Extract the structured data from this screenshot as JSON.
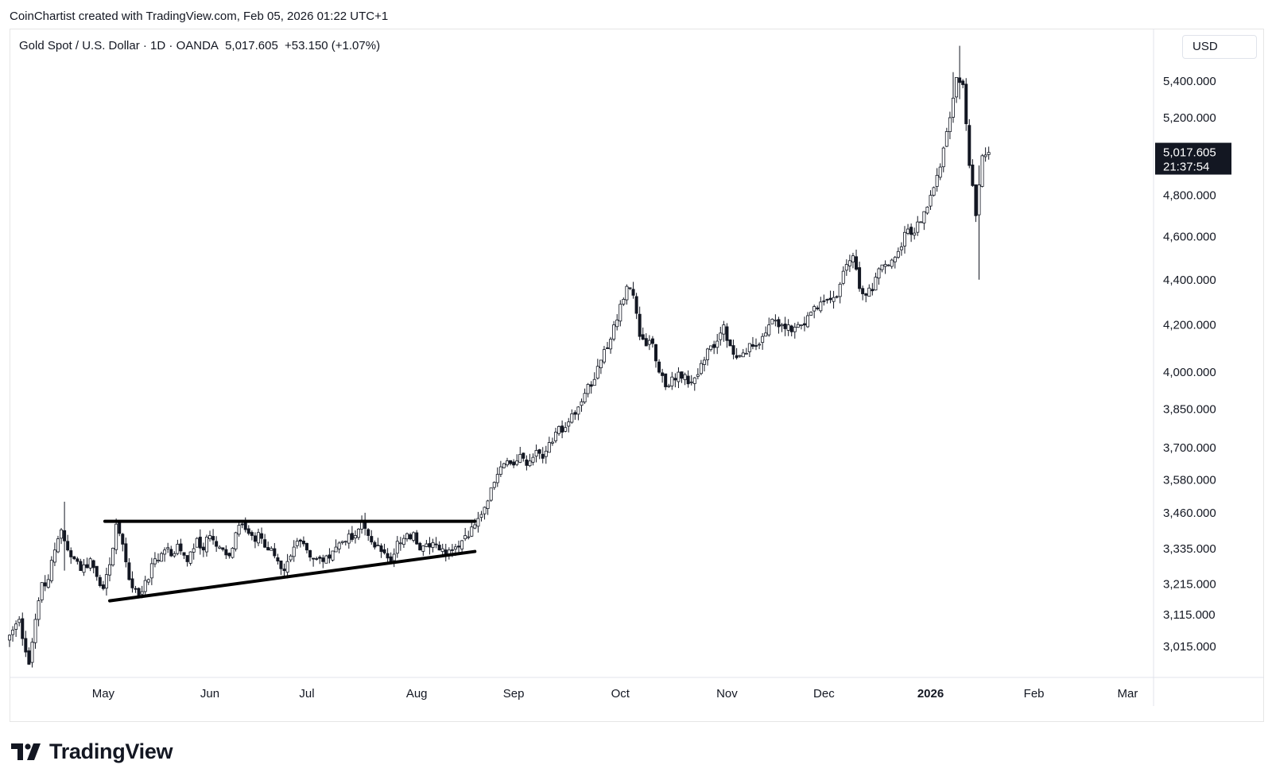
{
  "credit": "CoinChartist created with TradingView.com, Feb 05, 2026 01:22 UTC+1",
  "legend": {
    "symbol": "Gold Spot / U.S. Dollar · 1D · OANDA",
    "last": "5,017.605",
    "change": "+53.150 (+1.07%)"
  },
  "currency": "USD",
  "price_badge": {
    "price": "5,017.605",
    "countdown": "21:37:54"
  },
  "brand": "TradingView",
  "colors": {
    "up": "#ffffff",
    "down": "#131722",
    "badge_bg": "#131722",
    "line": "#000000"
  },
  "chart_data": {
    "type": "candlestick",
    "title": "Gold Spot / U.S. Dollar · 1D · OANDA",
    "scale": "log",
    "ylim": [
      2920,
      5700
    ],
    "y_ticks": [
      "5,400.000",
      "5,200.000",
      "4,800.000",
      "4,600.000",
      "4,400.000",
      "4,200.000",
      "4,000.000",
      "3,850.000",
      "3,700.000",
      "3,580.000",
      "3,460.000",
      "3,335.000",
      "3,215.000",
      "3,115.000",
      "3,015.000"
    ],
    "y_tick_values": [
      5400,
      5200,
      4800,
      4600,
      4400,
      4200,
      4000,
      3850,
      3700,
      3580,
      3460,
      3335,
      3215,
      3115,
      3015
    ],
    "x_ticks": [
      "May",
      "Jun",
      "Jul",
      "Aug",
      "Sep",
      "Oct",
      "Nov",
      "Dec",
      "2026",
      "Feb",
      "Mar"
    ],
    "x_tick_days": [
      29,
      62,
      92,
      126,
      156,
      189,
      222,
      252,
      285,
      317,
      346
    ],
    "x_range_days": [
      0,
      354
    ],
    "close_anchors": [
      [
        0,
        3050
      ],
      [
        3,
        3100
      ],
      [
        6,
        2960
      ],
      [
        8,
        3100
      ],
      [
        10,
        3220
      ],
      [
        12,
        3230
      ],
      [
        14,
        3330
      ],
      [
        16,
        3400
      ],
      [
        18,
        3330
      ],
      [
        20,
        3300
      ],
      [
        22,
        3260
      ],
      [
        25,
        3300
      ],
      [
        27,
        3240
      ],
      [
        29,
        3200
      ],
      [
        31,
        3280
      ],
      [
        33,
        3420
      ],
      [
        35,
        3350
      ],
      [
        37,
        3230
      ],
      [
        39,
        3200
      ],
      [
        41,
        3190
      ],
      [
        43,
        3230
      ],
      [
        45,
        3300
      ],
      [
        48,
        3330
      ],
      [
        50,
        3310
      ],
      [
        52,
        3350
      ],
      [
        55,
        3290
      ],
      [
        58,
        3370
      ],
      [
        60,
        3330
      ],
      [
        62,
        3380
      ],
      [
        65,
        3340
      ],
      [
        68,
        3310
      ],
      [
        70,
        3390
      ],
      [
        72,
        3420
      ],
      [
        75,
        3380
      ],
      [
        78,
        3370
      ],
      [
        80,
        3330
      ],
      [
        82,
        3310
      ],
      [
        85,
        3260
      ],
      [
        88,
        3340
      ],
      [
        90,
        3360
      ],
      [
        92,
        3330
      ],
      [
        95,
        3300
      ],
      [
        98,
        3310
      ],
      [
        101,
        3340
      ],
      [
        104,
        3360
      ],
      [
        107,
        3380
      ],
      [
        109,
        3430
      ],
      [
        111,
        3380
      ],
      [
        113,
        3340
      ],
      [
        116,
        3320
      ],
      [
        118,
        3290
      ],
      [
        120,
        3360
      ],
      [
        122,
        3370
      ],
      [
        125,
        3390
      ],
      [
        127,
        3330
      ],
      [
        130,
        3340
      ],
      [
        133,
        3330
      ],
      [
        135,
        3310
      ],
      [
        137,
        3330
      ],
      [
        139,
        3340
      ],
      [
        141,
        3380
      ],
      [
        143,
        3410
      ],
      [
        145,
        3440
      ],
      [
        147,
        3480
      ],
      [
        149,
        3550
      ],
      [
        151,
        3600
      ],
      [
        153,
        3640
      ],
      [
        155,
        3640
      ],
      [
        157,
        3650
      ],
      [
        159,
        3660
      ],
      [
        161,
        3650
      ],
      [
        163,
        3690
      ],
      [
        165,
        3660
      ],
      [
        167,
        3720
      ],
      [
        169,
        3760
      ],
      [
        171,
        3760
      ],
      [
        173,
        3800
      ],
      [
        175,
        3830
      ],
      [
        177,
        3880
      ],
      [
        179,
        3950
      ],
      [
        181,
        3970
      ],
      [
        183,
        4050
      ],
      [
        185,
        4100
      ],
      [
        187,
        4200
      ],
      [
        189,
        4290
      ],
      [
        191,
        4370
      ],
      [
        193,
        4330
      ],
      [
        195,
        4150
      ],
      [
        197,
        4110
      ],
      [
        199,
        4120
      ],
      [
        201,
        4000
      ],
      [
        203,
        3940
      ],
      [
        205,
        3980
      ],
      [
        207,
        4000
      ],
      [
        209,
        3990
      ],
      [
        211,
        3960
      ],
      [
        213,
        3990
      ],
      [
        215,
        4050
      ],
      [
        217,
        4110
      ],
      [
        219,
        4130
      ],
      [
        221,
        4200
      ],
      [
        223,
        4110
      ],
      [
        225,
        4060
      ],
      [
        227,
        4080
      ],
      [
        229,
        4120
      ],
      [
        231,
        4110
      ],
      [
        233,
        4150
      ],
      [
        235,
        4200
      ],
      [
        237,
        4220
      ],
      [
        239,
        4200
      ],
      [
        241,
        4200
      ],
      [
        243,
        4190
      ],
      [
        245,
        4200
      ],
      [
        247,
        4240
      ],
      [
        249,
        4280
      ],
      [
        251,
        4300
      ],
      [
        253,
        4310
      ],
      [
        255,
        4320
      ],
      [
        257,
        4380
      ],
      [
        259,
        4470
      ],
      [
        261,
        4510
      ],
      [
        263,
        4360
      ],
      [
        265,
        4330
      ],
      [
        267,
        4350
      ],
      [
        269,
        4450
      ],
      [
        271,
        4470
      ],
      [
        273,
        4490
      ],
      [
        275,
        4530
      ],
      [
        277,
        4620
      ],
      [
        279,
        4610
      ],
      [
        281,
        4670
      ],
      [
        283,
        4720
      ],
      [
        285,
        4800
      ],
      [
        287,
        4900
      ],
      [
        289,
        5040
      ],
      [
        291,
        5200
      ],
      [
        293,
        5420
      ],
      [
        295,
        5380
      ],
      [
        297,
        4950
      ],
      [
        299,
        4700
      ],
      [
        301,
        5000
      ],
      [
        303,
        5017
      ]
    ],
    "triangle": {
      "resistance": {
        "start_day": 30,
        "end_day": 143,
        "price": 3430
      },
      "support": {
        "start_day": 31,
        "end_day": 143,
        "start_price": 3160,
        "end_price": 3325
      }
    }
  }
}
